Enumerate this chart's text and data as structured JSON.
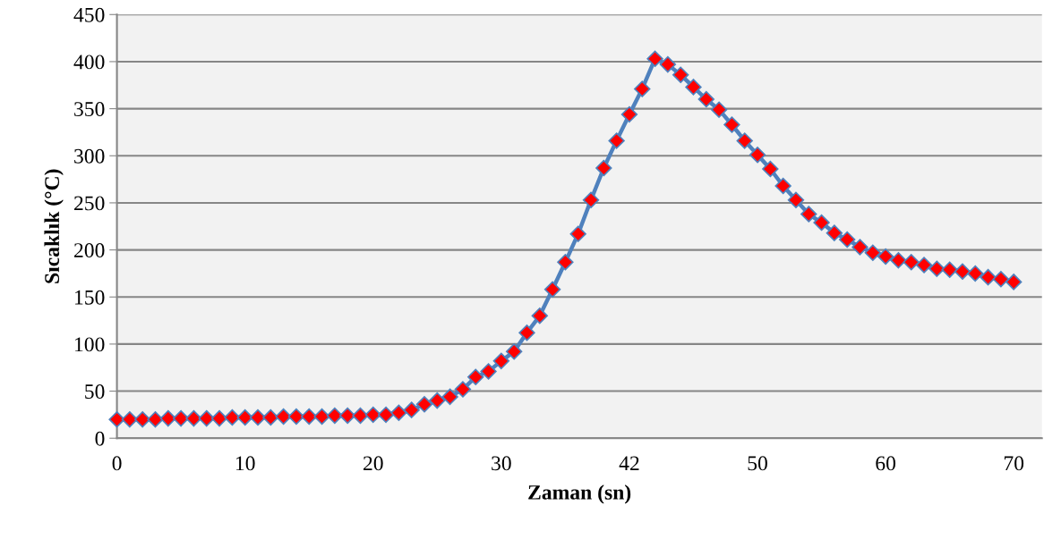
{
  "chart_data": {
    "type": "line",
    "xlabel": "Zaman (sn)",
    "ylabel": "Sıcaklık (°C)",
    "categories": [
      "0",
      null,
      null,
      null,
      null,
      null,
      null,
      null,
      null,
      null,
      "10",
      null,
      null,
      null,
      null,
      null,
      null,
      null,
      null,
      null,
      "20",
      null,
      null,
      null,
      null,
      null,
      null,
      null,
      null,
      null,
      "30",
      null,
      null,
      null,
      null,
      null,
      null,
      null,
      null,
      null,
      "42",
      null,
      null,
      null,
      null,
      null,
      null,
      null,
      null,
      null,
      "50",
      null,
      null,
      null,
      null,
      null,
      null,
      null,
      null,
      null,
      "60",
      null,
      null,
      null,
      null,
      null,
      null,
      null,
      null,
      null,
      "70"
    ],
    "series": [
      {
        "color": "#4f81bd",
        "values": [
          20,
          20,
          20,
          20,
          21,
          21,
          21,
          21,
          21,
          22,
          22,
          22,
          22,
          23,
          23,
          23,
          23,
          24,
          24,
          24,
          25,
          25,
          27,
          30,
          36,
          40,
          44,
          52,
          65,
          71,
          82,
          92,
          112,
          130,
          158,
          187,
          217,
          253,
          287,
          316,
          344,
          371,
          403,
          397,
          386,
          373,
          360,
          349,
          333,
          316,
          301,
          286,
          268,
          253,
          238,
          229,
          218,
          211,
          203,
          197,
          193,
          189,
          187,
          184,
          180,
          179,
          177,
          175,
          171,
          169,
          166
        ]
      }
    ],
    "ylim": [
      0,
      450
    ],
    "yticks": [
      0,
      50,
      100,
      150,
      200,
      250,
      300,
      350,
      400,
      450
    ],
    "grid": "y",
    "marker": "diamond",
    "line_style": "solid",
    "legend": false
  }
}
